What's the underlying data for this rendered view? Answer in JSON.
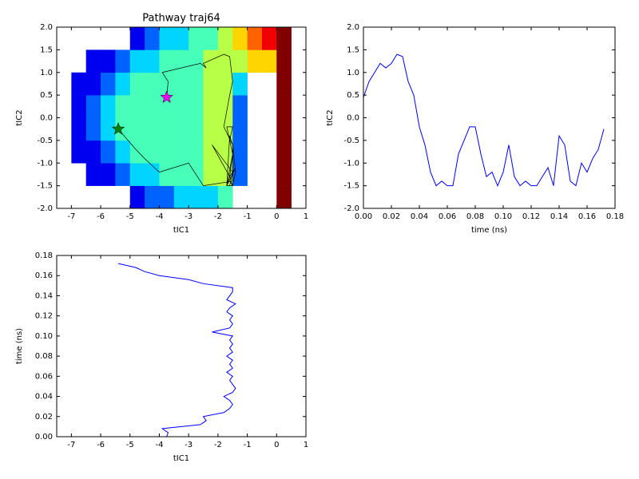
{
  "chart_data": [
    {
      "type": "heatmap_path",
      "title": "Pathway traj64",
      "xlabel": "tIC1",
      "ylabel": "tIC2",
      "xlim": [
        -7.5,
        1
      ],
      "ylim": [
        -2,
        2
      ],
      "xticks": [
        -7,
        -6,
        -5,
        -4,
        -3,
        -2,
        -1,
        0,
        1
      ],
      "yticks": [
        {
          "value": -2,
          "label": "-2.0"
        },
        -1.5,
        {
          "value": -1,
          "label": "-1.0"
        },
        -0.5,
        {
          "value": 0,
          "label": "0.0"
        },
        0.5,
        {
          "value": 1,
          "label": "1.0"
        },
        1.5,
        {
          "value": 2,
          "label": "2.0"
        }
      ],
      "hist": {
        "xbins": [
          -7.5,
          -7,
          -6.5,
          -6,
          -5.5,
          -5,
          -4.5,
          -4,
          -3.5,
          -3,
          -2.5,
          -2,
          -1.5,
          -1,
          -0.5,
          0,
          0.5,
          1
        ],
        "ybins": [
          -2,
          -1.5,
          -1,
          -0.5,
          0,
          0.5,
          1,
          1.5,
          2
        ],
        "levels": [
          [
            null,
            null,
            null,
            null,
            null,
            1,
            2,
            2,
            3,
            3,
            3,
            4,
            null,
            null,
            null,
            9,
            null
          ],
          [
            null,
            null,
            1,
            1,
            2,
            3,
            3,
            4,
            4,
            4,
            5,
            5,
            2,
            null,
            null,
            9,
            null
          ],
          [
            null,
            1,
            1,
            2,
            3,
            4,
            4,
            4,
            4,
            4,
            5,
            5,
            2,
            null,
            null,
            9,
            null
          ],
          [
            null,
            1,
            2,
            3,
            4,
            4,
            4,
            4,
            4,
            4,
            5,
            5,
            2,
            null,
            null,
            9,
            null
          ],
          [
            null,
            1,
            2,
            3,
            4,
            4,
            4,
            4,
            4,
            4,
            5,
            5,
            2,
            null,
            null,
            9,
            null
          ],
          [
            null,
            1,
            1,
            2,
            3,
            4,
            4,
            4,
            4,
            4,
            5,
            5,
            3,
            null,
            null,
            9,
            null
          ],
          [
            null,
            null,
            1,
            1,
            2,
            3,
            3,
            4,
            4,
            4,
            5,
            5,
            5,
            6,
            6,
            9,
            null
          ],
          [
            null,
            null,
            null,
            null,
            null,
            1,
            2,
            3,
            3,
            4,
            4,
            5,
            6,
            7,
            8,
            9,
            null
          ]
        ]
      },
      "start_marker_color": "#ff00ff",
      "end_marker_color": "#008000",
      "x": [
        -3.75,
        -3.7,
        -3.9,
        -2.6,
        -2.4,
        -2.5,
        -1.8,
        -1.6,
        -1.5,
        -1.6,
        -1.8,
        -1.5,
        -1.4,
        -1.5,
        -1.6,
        -1.5,
        -1.7,
        -1.5,
        -1.6,
        -1.5,
        -1.7,
        -1.5,
        -1.6,
        -1.5,
        -1.6,
        -1.5,
        -2.2,
        -1.6,
        -1.5,
        -1.6,
        -1.5,
        -1.7,
        -1.6,
        -1.4,
        -1.7,
        -1.6,
        -1.5,
        -1.5,
        -2.5,
        -3.0,
        -4.0,
        -4.5,
        -4.8,
        -5.4
      ],
      "series": [
        {
          "color": "#000000",
          "values": [
            0.45,
            0.8,
            1.0,
            1.2,
            1.1,
            1.2,
            1.4,
            1.35,
            0.8,
            0.5,
            -0.2,
            -0.6,
            -1.2,
            -1.5,
            -1.4,
            -1.5,
            -1.5,
            -0.8,
            -0.5,
            -0.2,
            -0.2,
            -0.8,
            -1.3,
            -1.2,
            -1.5,
            -1.2,
            -0.6,
            -1.3,
            -1.5,
            -1.4,
            -1.5,
            -1.5,
            -1.3,
            -1.1,
            -1.5,
            -0.4,
            -0.6,
            -1.4,
            -1.5,
            -1.0,
            -1.2,
            -0.9,
            -0.7,
            -0.25
          ]
        }
      ]
    },
    {
      "type": "line",
      "xlabel": "time (ns)",
      "ylabel": "tIC2",
      "xlim": [
        0,
        0.18
      ],
      "ylim": [
        -2,
        2
      ],
      "xticks": [
        {
          "value": 0,
          "label": "0.00"
        },
        0.02,
        0.04,
        0.06,
        0.08,
        {
          "value": 0.1,
          "label": "0.10"
        },
        0.12,
        0.14,
        0.16,
        0.18
      ],
      "yticks": [
        {
          "value": -2,
          "label": "-2.0"
        },
        -1.5,
        {
          "value": -1,
          "label": "-1.0"
        },
        -0.5,
        {
          "value": 0,
          "label": "0.0"
        },
        0.5,
        {
          "value": 1,
          "label": "1.0"
        },
        1.5,
        {
          "value": 2,
          "label": "2.0"
        }
      ],
      "x": [
        0,
        0.004,
        0.008,
        0.012,
        0.016,
        0.02,
        0.024,
        0.028,
        0.032,
        0.036,
        0.04,
        0.044,
        0.048,
        0.052,
        0.056,
        0.06,
        0.064,
        0.068,
        0.072,
        0.076,
        0.08,
        0.084,
        0.088,
        0.092,
        0.096,
        0.1,
        0.104,
        0.108,
        0.112,
        0.116,
        0.12,
        0.124,
        0.128,
        0.132,
        0.136,
        0.14,
        0.144,
        0.148,
        0.152,
        0.156,
        0.16,
        0.164,
        0.168,
        0.172
      ],
      "series": [
        {
          "color": "#0000ff",
          "values": [
            0.45,
            0.8,
            1.0,
            1.2,
            1.1,
            1.2,
            1.4,
            1.35,
            0.8,
            0.5,
            -0.2,
            -0.6,
            -1.2,
            -1.5,
            -1.4,
            -1.5,
            -1.5,
            -0.8,
            -0.5,
            -0.2,
            -0.2,
            -0.8,
            -1.3,
            -1.2,
            -1.5,
            -1.2,
            -0.6,
            -1.3,
            -1.5,
            -1.4,
            -1.5,
            -1.5,
            -1.3,
            -1.1,
            -1.5,
            -0.4,
            -0.6,
            -1.4,
            -1.5,
            -1.0,
            -1.2,
            -0.9,
            -0.7,
            -0.25
          ]
        }
      ]
    },
    {
      "type": "line",
      "xlabel": "tIC1",
      "ylabel": "time (ns)",
      "xlim": [
        -7.5,
        1
      ],
      "ylim": [
        0,
        0.18
      ],
      "xticks": [
        -7,
        -6,
        -5,
        -4,
        -3,
        -2,
        -1,
        0,
        1
      ],
      "yticks": [
        {
          "value": 0,
          "label": "0.00"
        },
        0.02,
        0.04,
        0.06,
        0.08,
        {
          "value": 0.1,
          "label": "0.10"
        },
        0.12,
        0.14,
        0.16,
        0.18
      ],
      "x": [
        -3.75,
        -3.7,
        -3.9,
        -2.6,
        -2.4,
        -2.5,
        -1.8,
        -1.6,
        -1.5,
        -1.6,
        -1.8,
        -1.5,
        -1.4,
        -1.5,
        -1.6,
        -1.5,
        -1.7,
        -1.5,
        -1.6,
        -1.5,
        -1.7,
        -1.5,
        -1.6,
        -1.5,
        -1.6,
        -1.5,
        -2.2,
        -1.6,
        -1.5,
        -1.6,
        -1.5,
        -1.7,
        -1.6,
        -1.4,
        -1.7,
        -1.6,
        -1.5,
        -1.5,
        -2.5,
        -3.0,
        -4.0,
        -4.5,
        -4.8,
        -5.4
      ],
      "series": [
        {
          "color": "#0000ff",
          "values": [
            0,
            0.004,
            0.008,
            0.012,
            0.016,
            0.02,
            0.024,
            0.028,
            0.032,
            0.036,
            0.04,
            0.044,
            0.048,
            0.052,
            0.056,
            0.06,
            0.064,
            0.068,
            0.072,
            0.076,
            0.08,
            0.084,
            0.088,
            0.092,
            0.096,
            0.1,
            0.104,
            0.108,
            0.112,
            0.116,
            0.12,
            0.124,
            0.128,
            0.132,
            0.136,
            0.14,
            0.144,
            0.148,
            0.152,
            0.156,
            0.16,
            0.164,
            0.168,
            0.172
          ]
        }
      ]
    }
  ]
}
